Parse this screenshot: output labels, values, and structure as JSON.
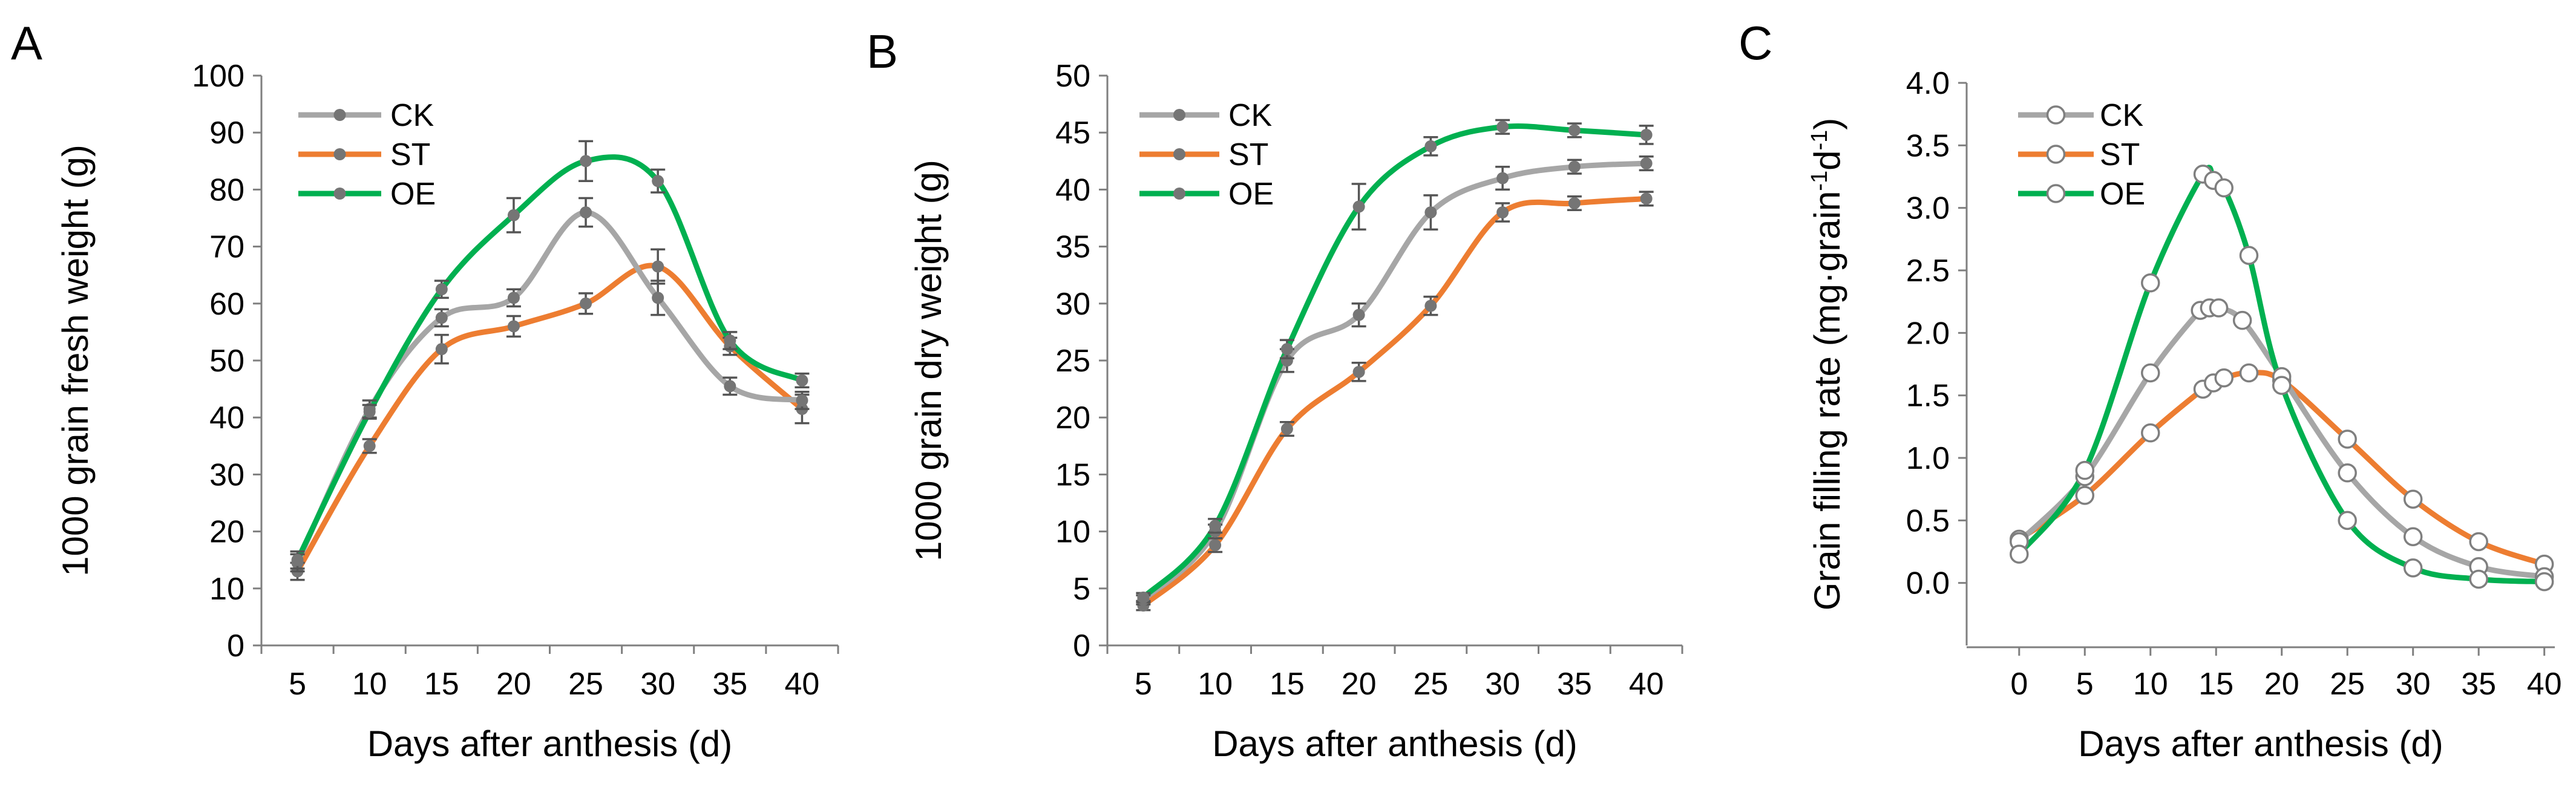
{
  "chart_data": [
    {
      "panel": "A",
      "type": "line",
      "xlabel": "Days after anthesis (d)",
      "ylabel": "1000 grain fresh weight (g)",
      "x": [
        5,
        10,
        15,
        20,
        25,
        30,
        35,
        40
      ],
      "x_ticks": [
        5,
        10,
        15,
        20,
        25,
        30,
        35,
        40
      ],
      "ylim": [
        0,
        100
      ],
      "y_ticks": [
        0,
        10,
        20,
        30,
        40,
        50,
        60,
        70,
        80,
        90,
        100
      ],
      "legend_position": "top-left",
      "markers": "filled",
      "series": [
        {
          "name": "CK",
          "color": "#a6a6a6",
          "values": [
            14.5,
            41.5,
            57.5,
            61.0,
            76.0,
            61.0,
            45.5,
            43.0
          ],
          "errors": [
            1.5,
            1.5,
            1.5,
            1.5,
            2.5,
            3.0,
            1.5,
            1.5
          ]
        },
        {
          "name": "ST",
          "color": "#ed7d31",
          "values": [
            13.0,
            35.0,
            52.0,
            56.0,
            60.0,
            66.5,
            52.5,
            41.5
          ],
          "errors": [
            1.5,
            1.2,
            2.5,
            1.8,
            1.8,
            3.0,
            1.5,
            2.5
          ]
        },
        {
          "name": "OE",
          "color": "#00b050",
          "values": [
            15.0,
            41.0,
            62.5,
            75.5,
            85.0,
            81.5,
            53.5,
            46.5
          ],
          "errors": [
            1.5,
            1.2,
            1.5,
            3.0,
            3.5,
            2.0,
            1.5,
            1.2
          ]
        }
      ]
    },
    {
      "panel": "B",
      "type": "line",
      "xlabel": "Days after anthesis (d)",
      "ylabel": "1000 grain dry weight (g)",
      "x": [
        5,
        10,
        15,
        20,
        25,
        30,
        35,
        40
      ],
      "x_ticks": [
        5,
        10,
        15,
        20,
        25,
        30,
        35,
        40
      ],
      "ylim": [
        0,
        50
      ],
      "y_ticks": [
        0,
        5,
        10,
        15,
        20,
        25,
        30,
        35,
        40,
        45,
        50
      ],
      "legend_position": "top-left",
      "markers": "filled",
      "series": [
        {
          "name": "CK",
          "color": "#a6a6a6",
          "values": [
            4.0,
            10.0,
            25.0,
            29.0,
            38.0,
            41.0,
            42.0,
            42.3
          ],
          "errors": [
            0.4,
            0.6,
            1.0,
            1.0,
            1.5,
            1.0,
            0.6,
            0.6
          ]
        },
        {
          "name": "ST",
          "color": "#ed7d31",
          "values": [
            3.5,
            8.8,
            19.0,
            24.0,
            29.8,
            38.0,
            38.8,
            39.2
          ],
          "errors": [
            0.4,
            0.6,
            0.6,
            0.8,
            0.8,
            0.8,
            0.6,
            0.6
          ]
        },
        {
          "name": "OE",
          "color": "#00b050",
          "values": [
            4.2,
            10.5,
            26.0,
            38.5,
            43.8,
            45.5,
            45.2,
            44.8
          ],
          "errors": [
            0.4,
            0.6,
            0.8,
            2.0,
            0.8,
            0.6,
            0.6,
            0.8
          ]
        }
      ]
    },
    {
      "panel": "C",
      "type": "line",
      "xlabel": "Days after anthesis (d)",
      "ylabel": "Grain filling rate (mg·grain",
      "ylabel_sup1": "-1",
      "ylabel_mid": "d",
      "ylabel_sup2": "-1",
      "ylabel_end": ")",
      "x_ticks": [
        0,
        5,
        10,
        15,
        20,
        25,
        30,
        35,
        40
      ],
      "xlim": [
        -4,
        40.8
      ],
      "ylim": [
        -0.5,
        4.0
      ],
      "y_ticks": [
        "0.0",
        "0.5",
        "1.0",
        "1.5",
        "2.0",
        "2.5",
        "3.0",
        "3.5",
        "4.0"
      ],
      "legend_position": "top-left",
      "markers": "open",
      "series": [
        {
          "name": "CK",
          "color": "#a6a6a6",
          "x": [
            0,
            5,
            10,
            13.8,
            14.5,
            15.2,
            17,
            20,
            25,
            30,
            35,
            40
          ],
          "values": [
            0.33,
            0.85,
            1.68,
            2.18,
            2.2,
            2.2,
            2.1,
            1.65,
            0.88,
            0.37,
            0.13,
            0.05
          ]
        },
        {
          "name": "ST",
          "color": "#ed7d31",
          "x": [
            0,
            5,
            10,
            14,
            14.8,
            15.6,
            17.5,
            20,
            25,
            30,
            35,
            40
          ],
          "values": [
            0.35,
            0.7,
            1.2,
            1.55,
            1.6,
            1.64,
            1.68,
            1.62,
            1.15,
            0.67,
            0.33,
            0.15
          ]
        },
        {
          "name": "OE",
          "color": "#00b050",
          "x": [
            0,
            5,
            10,
            14,
            14.8,
            15.6,
            17.5,
            20,
            25,
            30,
            35,
            40
          ],
          "values": [
            0.23,
            0.9,
            2.4,
            3.27,
            3.22,
            3.16,
            2.62,
            1.58,
            0.5,
            0.12,
            0.03,
            0.01
          ]
        }
      ]
    }
  ]
}
